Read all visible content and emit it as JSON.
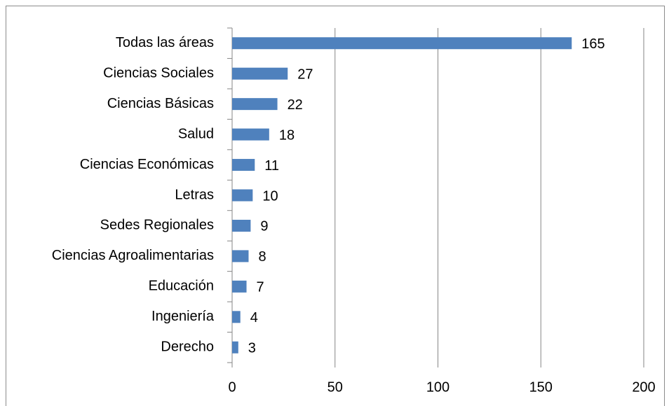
{
  "chart_data": {
    "type": "bar",
    "orientation": "horizontal",
    "categories": [
      "Todas las áreas",
      "Ciencias Sociales",
      "Ciencias Básicas",
      "Salud",
      "Ciencias Económicas",
      "Letras",
      "Sedes Regionales",
      "Ciencias Agroalimentarias",
      "Educación",
      "Ingeniería",
      "Derecho"
    ],
    "values": [
      165,
      27,
      22,
      18,
      11,
      10,
      9,
      8,
      7,
      4,
      3
    ],
    "color": "#4f81bd",
    "xlim": [
      0,
      200
    ],
    "xticks": [
      0,
      50,
      100,
      150,
      200
    ],
    "grid": true
  }
}
